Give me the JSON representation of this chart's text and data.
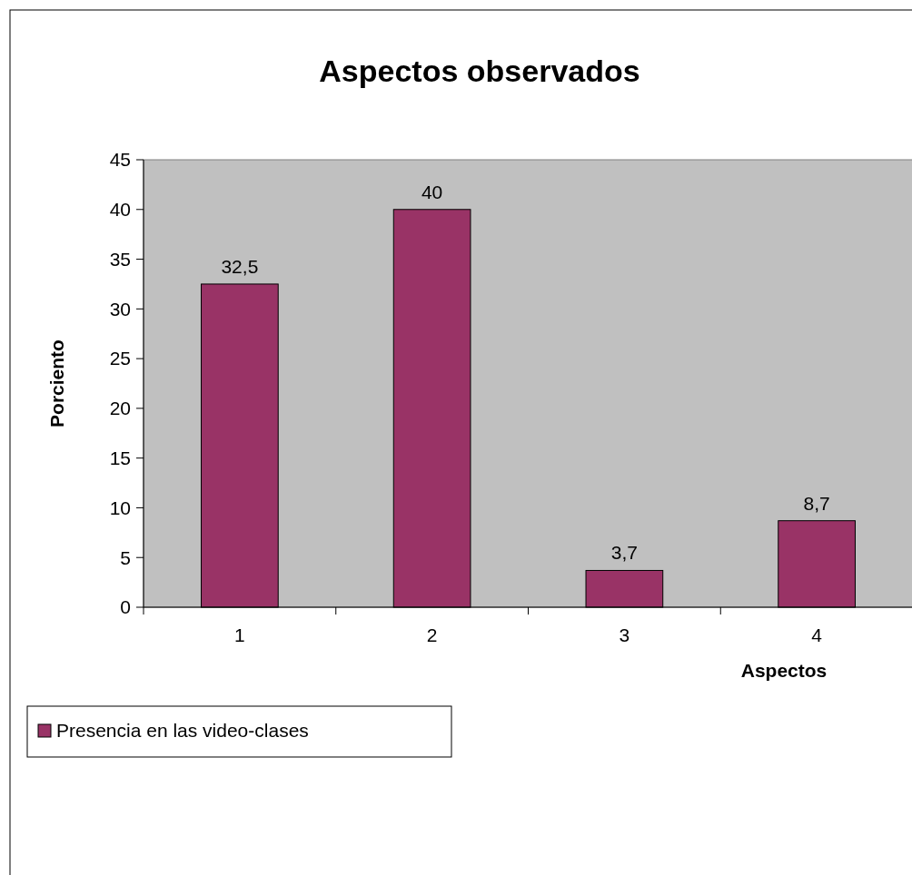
{
  "chart_data": {
    "type": "bar",
    "title": "Aspectos observados",
    "xlabel": "Aspectos",
    "ylabel": "Porciento",
    "categories": [
      "1",
      "2",
      "3",
      "4"
    ],
    "series": [
      {
        "name": "Presencia en las video-clases",
        "color": "#993366",
        "values": [
          32.5,
          40,
          3.7,
          8.7
        ],
        "value_labels": [
          "32,5",
          "40",
          "3,7",
          "8,7"
        ]
      }
    ],
    "ylim": [
      0,
      45
    ],
    "yticks": [
      0,
      5,
      10,
      15,
      20,
      25,
      30,
      35,
      40,
      45
    ],
    "grid": false,
    "legend": "bottom left"
  }
}
